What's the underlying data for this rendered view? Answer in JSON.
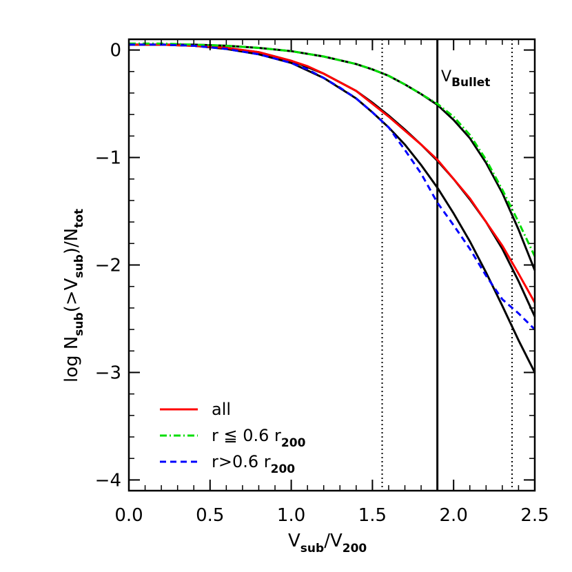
{
  "chart_data": {
    "type": "line",
    "xlabel": {
      "main": "V",
      "sub1": "sub",
      "slash": "/V",
      "sub2": "200"
    },
    "ylabel": {
      "prefix": "log  N",
      "sub1": "sub",
      "mid1": "(>V",
      "sub2": "sub",
      "mid2": ")/N",
      "sub3": "tot"
    },
    "xlim": [
      0.0,
      2.5
    ],
    "ylim": [
      -4.1,
      0.1
    ],
    "x_ticks": [
      0.0,
      0.5,
      1.0,
      1.5,
      2.0,
      2.5
    ],
    "x_tick_labels": [
      "0.0",
      "0.5",
      "1.0",
      "1.5",
      "2.0",
      "2.5"
    ],
    "y_ticks": [
      0,
      -1,
      -2,
      -3,
      -4
    ],
    "y_tick_labels": [
      "0",
      "−1",
      "−2",
      "−3",
      "−4"
    ],
    "grid": false,
    "legend_position": "bottom-left",
    "series": [
      {
        "name_parts": {
          "main": "all",
          "sub": ""
        },
        "color": "#ff0000",
        "style": "solid",
        "x": [
          0.0,
          0.2,
          0.4,
          0.6,
          0.8,
          1.0,
          1.1,
          1.2,
          1.3,
          1.4,
          1.5,
          1.6,
          1.7,
          1.8,
          1.9,
          2.0,
          2.1,
          2.2,
          2.3,
          2.4,
          2.5
        ],
        "y": [
          0.05,
          0.05,
          0.04,
          0.02,
          -0.02,
          -0.1,
          -0.15,
          -0.22,
          -0.3,
          -0.38,
          -0.5,
          -0.62,
          -0.75,
          -0.88,
          -1.02,
          -1.2,
          -1.38,
          -1.6,
          -1.82,
          -2.08,
          -2.35
        ]
      },
      {
        "name_parts": {
          "main": "r ≦ 0.6 r",
          "sub": "200"
        },
        "color": "#00dd00",
        "style": "dashdot",
        "x": [
          0.0,
          0.2,
          0.4,
          0.6,
          0.8,
          1.0,
          1.2,
          1.4,
          1.5,
          1.6,
          1.7,
          1.8,
          1.9,
          2.0,
          2.1,
          2.2,
          2.3,
          2.4,
          2.5
        ],
        "y": [
          0.06,
          0.06,
          0.05,
          0.04,
          0.02,
          -0.01,
          -0.06,
          -0.13,
          -0.18,
          -0.24,
          -0.32,
          -0.41,
          -0.5,
          -0.62,
          -0.79,
          -1.02,
          -1.3,
          -1.6,
          -1.92
        ]
      },
      {
        "name_parts": {
          "main": "r>0.6 r",
          "sub": "200"
        },
        "color": "#0000ff",
        "style": "dashed",
        "x": [
          0.0,
          0.2,
          0.4,
          0.6,
          0.8,
          1.0,
          1.1,
          1.2,
          1.3,
          1.4,
          1.5,
          1.6,
          1.7,
          1.8,
          1.9,
          2.0,
          2.1,
          2.2,
          2.3,
          2.4,
          2.5
        ],
        "y": [
          0.05,
          0.05,
          0.04,
          0.01,
          -0.04,
          -0.12,
          -0.18,
          -0.26,
          -0.35,
          -0.45,
          -0.58,
          -0.72,
          -0.93,
          -1.15,
          -1.42,
          -1.63,
          -1.85,
          -2.1,
          -2.32,
          -2.45,
          -2.6
        ]
      }
    ],
    "fit_curves": [
      {
        "color": "#000000",
        "x": [
          0.0,
          0.2,
          0.4,
          0.6,
          0.8,
          1.0,
          1.2,
          1.4,
          1.5,
          1.6,
          1.7,
          1.8,
          1.9,
          2.0,
          2.1,
          2.2,
          2.3,
          2.4,
          2.5
        ],
        "y": [
          0.05,
          0.05,
          0.05,
          0.04,
          0.02,
          -0.01,
          -0.06,
          -0.13,
          -0.18,
          -0.24,
          -0.32,
          -0.41,
          -0.51,
          -0.65,
          -0.82,
          -1.05,
          -1.33,
          -1.67,
          -2.05
        ]
      },
      {
        "color": "#000000",
        "x": [
          0.0,
          0.2,
          0.4,
          0.6,
          0.8,
          1.0,
          1.2,
          1.4,
          1.5,
          1.6,
          1.7,
          1.8,
          1.9,
          2.0,
          2.1,
          2.2,
          2.3,
          2.4,
          2.5
        ],
        "y": [
          0.05,
          0.05,
          0.04,
          0.02,
          -0.02,
          -0.1,
          -0.22,
          -0.38,
          -0.49,
          -0.61,
          -0.74,
          -0.88,
          -1.03,
          -1.2,
          -1.39,
          -1.6,
          -1.85,
          -2.15,
          -2.48
        ]
      },
      {
        "color": "#000000",
        "x": [
          0.0,
          0.2,
          0.4,
          0.6,
          0.8,
          1.0,
          1.2,
          1.4,
          1.5,
          1.6,
          1.7,
          1.8,
          1.9,
          2.0,
          2.1,
          2.2,
          2.3,
          2.4,
          2.5
        ],
        "y": [
          0.05,
          0.05,
          0.04,
          0.01,
          -0.04,
          -0.12,
          -0.26,
          -0.45,
          -0.58,
          -0.72,
          -0.88,
          -1.07,
          -1.28,
          -1.52,
          -1.78,
          -2.07,
          -2.38,
          -2.7,
          -3.0
        ]
      }
    ],
    "vertical_lines": [
      {
        "x": 1.56,
        "style": "dotted"
      },
      {
        "x": 1.9,
        "style": "solid",
        "label_main": "V",
        "label_sub": "Bullet"
      },
      {
        "x": 2.36,
        "style": "dotted"
      }
    ]
  }
}
